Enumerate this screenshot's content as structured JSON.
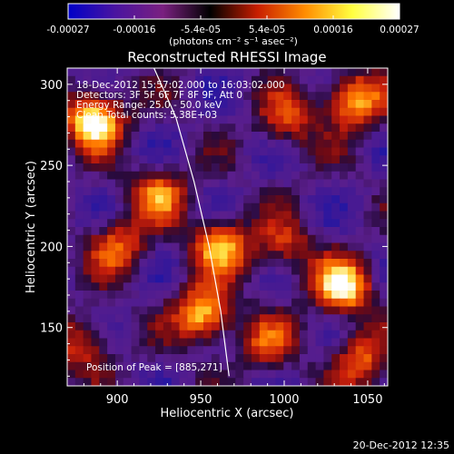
{
  "colorbar": {
    "ticks": [
      "-0.00027",
      "-0.00016",
      "-5.4e-05",
      "5.4e-05",
      "0.00016",
      "0.00027"
    ],
    "unit_label": "(photons cm⁻² s⁻¹ asec⁻²)"
  },
  "footer": {
    "date_text": "20-Dec-2012 12:35"
  },
  "chart_data": {
    "type": "heatmap",
    "title": "Reconstructed RHESSI Image",
    "xlabel": "Heliocentric X (arcsec)",
    "ylabel": "Heliocentric Y (arcsec)",
    "xlim": [
      870,
      1062
    ],
    "ylim": [
      114,
      310
    ],
    "xticks": [
      "900",
      "950",
      "1000",
      "1050"
    ],
    "yticks": [
      "150",
      "200",
      "250",
      "300"
    ],
    "xtick_values": [
      900,
      950,
      1000,
      1050
    ],
    "ytick_values": [
      150,
      200,
      250,
      300
    ],
    "info_lines": [
      "18-Dec-2012 15:57:02.000 to 16:03:02.000",
      "Detectors: 3F 5F 6F 7F 8F 9F, Att 0",
      "Energy Range: 25.0 - 50.0 keV",
      "Clean    Total counts: 5.38E+03"
    ],
    "peak_label": "Position of Peak = [885,271]",
    "peak_position": [
      885,
      271
    ],
    "limb_curve": [
      [
        922,
        310
      ],
      [
        935,
        280
      ],
      [
        946,
        240
      ],
      [
        955,
        200
      ],
      [
        962,
        160
      ],
      [
        967,
        120
      ]
    ],
    "hotspots": [
      {
        "x": 886,
        "y": 278,
        "value": 1.0
      },
      {
        "x": 962,
        "y": 200,
        "value": 0.75
      },
      {
        "x": 952,
        "y": 158,
        "value": 0.85
      },
      {
        "x": 1035,
        "y": 175,
        "value": 0.9
      },
      {
        "x": 1042,
        "y": 290,
        "value": 0.8
      },
      {
        "x": 925,
        "y": 232,
        "value": 0.6
      },
      {
        "x": 900,
        "y": 200,
        "value": 0.55
      },
      {
        "x": 1002,
        "y": 278,
        "value": 0.5
      },
      {
        "x": 1045,
        "y": 130,
        "value": 0.55
      },
      {
        "x": 880,
        "y": 140,
        "value": 0.5
      },
      {
        "x": 990,
        "y": 140,
        "value": 0.45
      },
      {
        "x": 1000,
        "y": 200,
        "value": 0.45
      }
    ],
    "colorscale": [
      "#0000c8",
      "#4a14a0",
      "#7a2080",
      "#000000",
      "#c81e00",
      "#ff8c00",
      "#ffff40",
      "#ffffff"
    ]
  }
}
